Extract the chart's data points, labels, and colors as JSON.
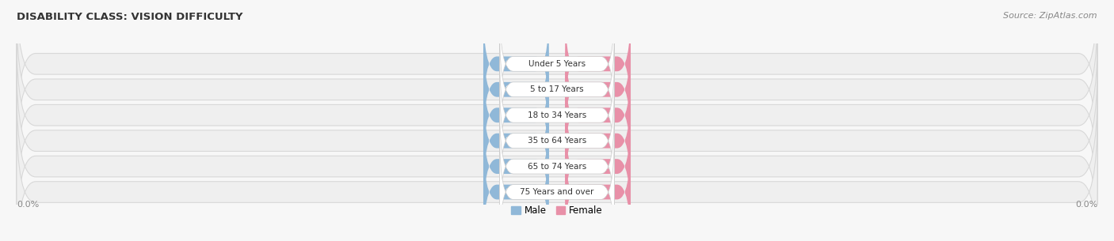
{
  "title": "DISABILITY CLASS: VISION DIFFICULTY",
  "source": "Source: ZipAtlas.com",
  "categories": [
    "Under 5 Years",
    "5 to 17 Years",
    "18 to 34 Years",
    "35 to 64 Years",
    "65 to 74 Years",
    "75 Years and over"
  ],
  "male_values": [
    0.0,
    0.0,
    0.0,
    0.0,
    0.0,
    0.0
  ],
  "female_values": [
    0.0,
    0.0,
    0.0,
    0.0,
    0.0,
    0.0
  ],
  "male_color": "#a8c8e8",
  "female_color": "#f0a0bc",
  "male_label": "Male",
  "female_label": "Female",
  "row_bg_color": "#efefef",
  "row_edge_color": "#d8d8d8",
  "title_color": "#333333",
  "source_color": "#888888",
  "axis_label_color": "#888888",
  "value_label": "0.0%",
  "value_text_color": "#ffffff",
  "category_text_color": "#333333",
  "figsize": [
    14.06,
    3.05
  ],
  "dpi": 100,
  "bg_color": "#f7f7f7",
  "pill_blue_color": "#90b8d8",
  "pill_pink_color": "#e890a8"
}
